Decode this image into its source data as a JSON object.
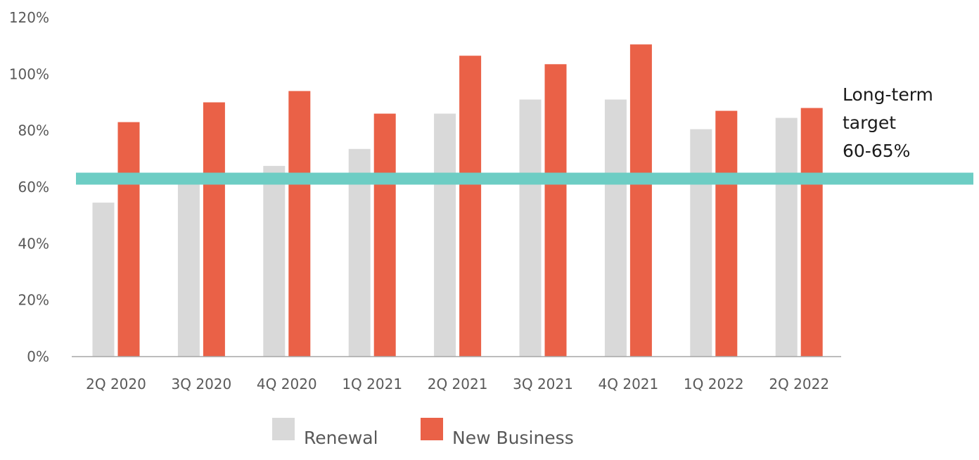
{
  "chart_data": {
    "type": "bar",
    "categories": [
      "2Q 2020",
      "3Q 2020",
      "4Q 2020",
      "1Q 2021",
      "2Q 2021",
      "3Q 2021",
      "4Q 2021",
      "1Q 2022",
      "2Q 2022"
    ],
    "series": [
      {
        "name": "Renewal",
        "color": "#d9d9d9",
        "values": [
          54.5,
          63,
          67.5,
          73.5,
          86,
          91,
          91,
          80.5,
          84.5
        ]
      },
      {
        "name": "New Business",
        "color": "#ea6147",
        "values": [
          83,
          90,
          94,
          86,
          106.5,
          103.5,
          110.5,
          87,
          88
        ]
      }
    ],
    "ylim": [
      0,
      120
    ],
    "y_ticks": [
      0,
      20,
      40,
      60,
      80,
      100,
      120
    ],
    "y_tick_labels": [
      "0%",
      "20%",
      "40%",
      "60%",
      "80%",
      "100%",
      "120%"
    ],
    "grid": false,
    "legend_position": "bottom",
    "reference_line": {
      "value": 63,
      "color": "#6dcdc4",
      "label_lines": [
        "Long-term",
        "target",
        "60-65%"
      ]
    }
  }
}
